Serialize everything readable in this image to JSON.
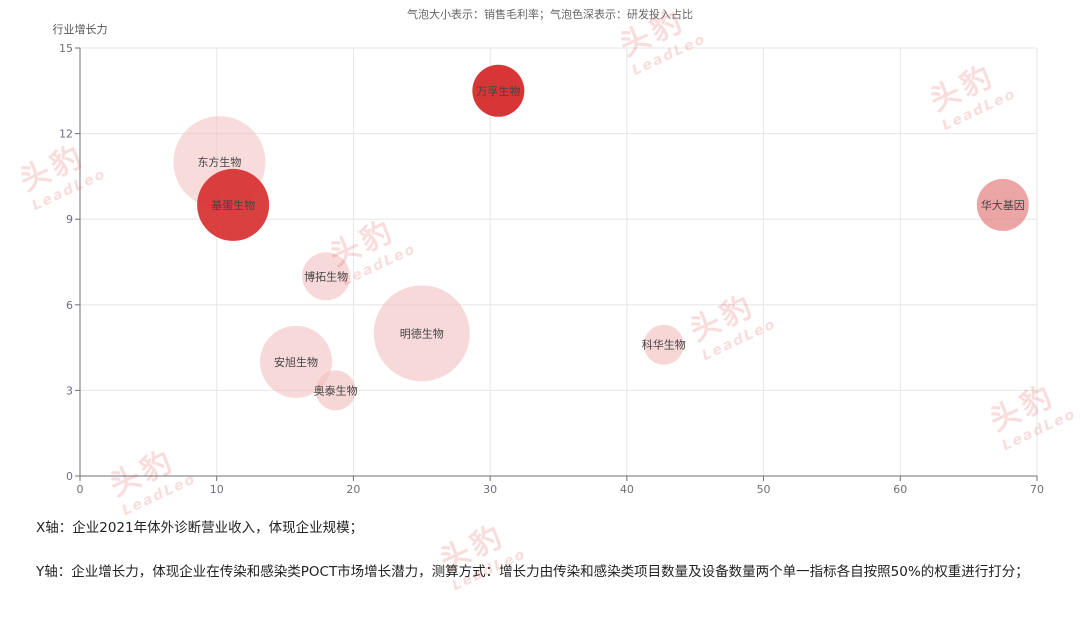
{
  "chart_data": {
    "type": "scatter",
    "legend_note": "气泡大小表示：销售毛利率；气泡色深表示：研发投入占比",
    "xlabel": "",
    "ylabel": "行业增长力",
    "xlim": [
      0,
      70
    ],
    "ylim": [
      0,
      15
    ],
    "xticks": [
      "0",
      "10",
      "20",
      "30",
      "40",
      "50",
      "60",
      "70"
    ],
    "yticks": [
      "0",
      "3",
      "6",
      "9",
      "12",
      "15"
    ],
    "grid": true,
    "points": [
      {
        "name": "东方生物",
        "x": 10.2,
        "y": 11.0,
        "size": 46,
        "color": "#f2c0c0",
        "opacity": 0.55
      },
      {
        "name": "基蛋生物",
        "x": 11.2,
        "y": 9.5,
        "size": 36,
        "color": "#d62b2b",
        "opacity": 0.9
      },
      {
        "name": "万孚生物",
        "x": 30.6,
        "y": 13.5,
        "size": 26,
        "color": "#d62b2b",
        "opacity": 0.95
      },
      {
        "name": "华大基因",
        "x": 67.5,
        "y": 9.5,
        "size": 26,
        "color": "#e37f7f",
        "opacity": 0.7
      },
      {
        "name": "博拓生物",
        "x": 18.0,
        "y": 7.0,
        "size": 24,
        "color": "#f2c0c0",
        "opacity": 0.6
      },
      {
        "name": "明德生物",
        "x": 25.0,
        "y": 5.0,
        "size": 48,
        "color": "#f2c0c0",
        "opacity": 0.6
      },
      {
        "name": "安旭生物",
        "x": 15.8,
        "y": 4.0,
        "size": 36,
        "color": "#f2c0c0",
        "opacity": 0.6
      },
      {
        "name": "奥泰生物",
        "x": 18.7,
        "y": 3.0,
        "size": 20,
        "color": "#f2c0c0",
        "opacity": 0.65
      },
      {
        "name": "科华生物",
        "x": 42.7,
        "y": 4.6,
        "size": 20,
        "color": "#f2c0c0",
        "opacity": 0.65
      }
    ]
  },
  "notes": {
    "x_axis": "X轴：企业2021年体外诊断营业收入，体现企业规模；",
    "y_axis": "Y轴：企业增长力，体现企业在传染和感染类POCT市场增长潜力，测算方式：增长力由传染和感染类项目数量及设备数量两个单一指标各自按照50%的权重进行打分；"
  },
  "watermark": {
    "cn": "头豹",
    "en": "LeadLeo"
  }
}
